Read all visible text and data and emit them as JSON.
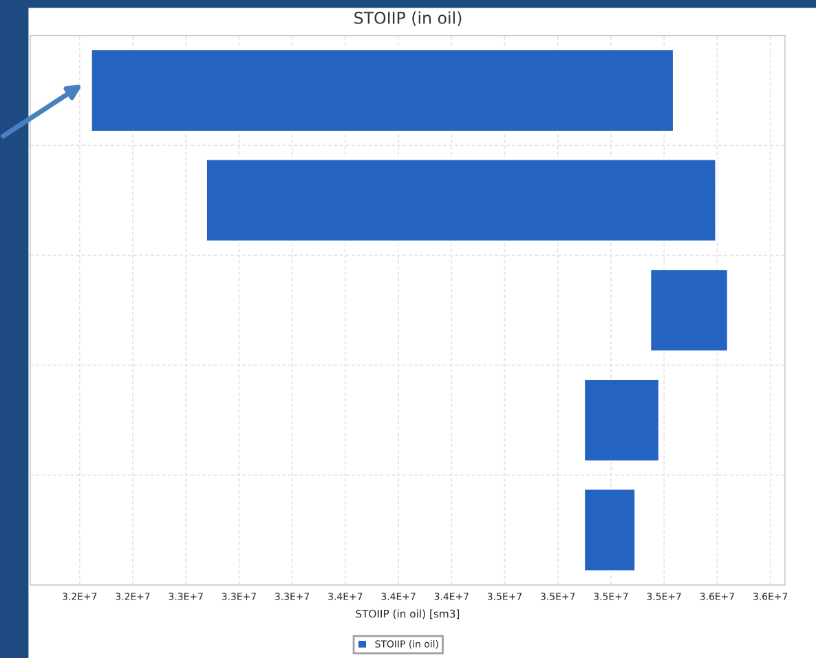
{
  "chart_data": {
    "type": "bar",
    "orientation": "horizontal",
    "title": "STOIIP (in oil)",
    "xlabel": "STOIIP (in oil) [sm3]",
    "categories": [
      null,
      null,
      null,
      null,
      null
    ],
    "series": [
      {
        "name": "STOIIP (in oil)",
        "color": "#2563c0",
        "values": [
          3181000,
          2784000,
          425000,
          411000,
          281000
        ],
        "base": [
          32262000,
          32890000,
          35314000,
          34953000,
          34953000
        ]
      }
    ],
    "xlim": [
      31930000,
      36050000
    ],
    "xticks": [
      {
        "value": 32200000,
        "label": "3.2E+7"
      },
      {
        "value": 32490000,
        "label": "3.2E+7"
      },
      {
        "value": 32780000,
        "label": "3.3E+7"
      },
      {
        "value": 33070000,
        "label": "3.3E+7"
      },
      {
        "value": 33360000,
        "label": "3.3E+7"
      },
      {
        "value": 33650000,
        "label": "3.4E+7"
      },
      {
        "value": 33940000,
        "label": "3.4E+7"
      },
      {
        "value": 34230000,
        "label": "3.4E+7"
      },
      {
        "value": 34520000,
        "label": "3.5E+7"
      },
      {
        "value": 34810000,
        "label": "3.5E+7"
      },
      {
        "value": 35100000,
        "label": "3.5E+7"
      },
      {
        "value": 35390000,
        "label": "3.5E+7"
      },
      {
        "value": 35680000,
        "label": "3.6E+7"
      },
      {
        "value": 35970000,
        "label": "3.6E+7"
      }
    ],
    "grid": true,
    "legend": "bottom"
  }
}
